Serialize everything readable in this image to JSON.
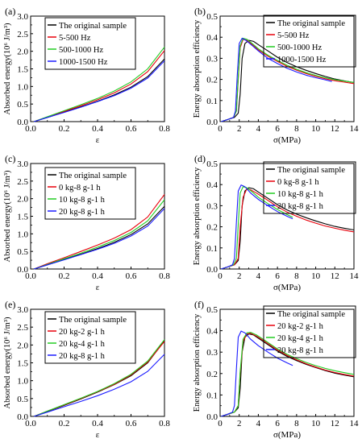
{
  "figure": {
    "panels_note": ""
  },
  "chart_data": [
    {
      "id": "a",
      "panel_label": "(a)",
      "type": "line",
      "xlabel": "ε",
      "ylabel": "Absorbed energy(10⁶ J/m³)",
      "xlim": [
        0,
        0.8
      ],
      "ylim": [
        0,
        3.0
      ],
      "xticks": [
        "0.0",
        "0.2",
        "0.4",
        "0.6",
        "0.8"
      ],
      "yticks": [
        "0.0",
        "0.5",
        "1.0",
        "1.5",
        "2.0",
        "2.5",
        "3.0"
      ],
      "legend_position": "top-left",
      "series": [
        {
          "name": "The original sample",
          "color": "#000000",
          "x": [
            0.02,
            0.1,
            0.2,
            0.3,
            0.4,
            0.5,
            0.6,
            0.7,
            0.8
          ],
          "y": [
            0.0,
            0.12,
            0.27,
            0.42,
            0.58,
            0.76,
            0.98,
            1.28,
            1.78
          ]
        },
        {
          "name": "5-500 Hz",
          "color": "#e8000b",
          "x": [
            0.02,
            0.1,
            0.2,
            0.3,
            0.4,
            0.5,
            0.6,
            0.7,
            0.8
          ],
          "y": [
            0.0,
            0.13,
            0.29,
            0.45,
            0.62,
            0.82,
            1.07,
            1.42,
            2.02
          ]
        },
        {
          "name": "500-1000 Hz",
          "color": "#22cc22",
          "x": [
            0.02,
            0.1,
            0.2,
            0.3,
            0.4,
            0.5,
            0.6,
            0.7,
            0.8
          ],
          "y": [
            0.0,
            0.14,
            0.31,
            0.48,
            0.66,
            0.87,
            1.13,
            1.5,
            2.12
          ]
        },
        {
          "name": "1000-1500 Hz",
          "color": "#1a1aff",
          "x": [
            0.02,
            0.1,
            0.2,
            0.3,
            0.4,
            0.5,
            0.6,
            0.7,
            0.8
          ],
          "y": [
            0.0,
            0.12,
            0.26,
            0.41,
            0.57,
            0.74,
            0.95,
            1.24,
            1.73
          ]
        }
      ]
    },
    {
      "id": "b",
      "panel_label": "(b)",
      "type": "line",
      "xlabel": "σ(MPa)",
      "ylabel": "Energy absorption efficiency",
      "xlim": [
        0,
        14
      ],
      "ylim": [
        0,
        0.5
      ],
      "xticks": [
        "0",
        "2",
        "4",
        "6",
        "8",
        "10",
        "12",
        "14"
      ],
      "yticks": [
        "0.0",
        "0.1",
        "0.2",
        "0.3",
        "0.4",
        "0.5"
      ],
      "legend_position": "top-right",
      "series": [
        {
          "name": "The original sample",
          "color": "#000000",
          "x": [
            0.1,
            0.8,
            1.5,
            1.9,
            2.1,
            2.3,
            2.6,
            3.0,
            3.5,
            4,
            5,
            6,
            7,
            8,
            9,
            10,
            11,
            12,
            13,
            14
          ],
          "y": [
            0.0,
            0.01,
            0.02,
            0.04,
            0.13,
            0.3,
            0.37,
            0.385,
            0.38,
            0.365,
            0.335,
            0.305,
            0.28,
            0.26,
            0.243,
            0.228,
            0.214,
            0.202,
            0.193,
            0.185
          ]
        },
        {
          "name": "5-500 Hz",
          "color": "#e8000b",
          "x": [
            0.1,
            0.8,
            1.4,
            1.7,
            1.9,
            2.1,
            2.4,
            2.8,
            3.5,
            4,
            5,
            6,
            7,
            8,
            9,
            10,
            11,
            12,
            13,
            14
          ],
          "y": [
            0.0,
            0.01,
            0.02,
            0.05,
            0.2,
            0.35,
            0.39,
            0.385,
            0.36,
            0.34,
            0.31,
            0.285,
            0.262,
            0.244,
            0.228,
            0.214,
            0.203,
            0.194,
            0.187,
            0.18
          ]
        },
        {
          "name": "500-1000 Hz",
          "color": "#22cc22",
          "x": [
            0.1,
            0.8,
            1.4,
            1.7,
            1.9,
            2.1,
            2.4,
            2.8,
            3.5,
            4,
            5,
            6,
            7,
            8,
            9,
            10,
            11,
            12,
            13,
            14
          ],
          "y": [
            0.0,
            0.01,
            0.02,
            0.05,
            0.21,
            0.36,
            0.395,
            0.39,
            0.365,
            0.345,
            0.315,
            0.29,
            0.267,
            0.248,
            0.232,
            0.219,
            0.208,
            0.199,
            0.192,
            0.186
          ]
        },
        {
          "name": "1000-1500 Hz",
          "color": "#1a1aff",
          "x": [
            0.1,
            0.8,
            1.4,
            1.6,
            1.8,
            2.0,
            2.3,
            2.7,
            3.5,
            4,
            5,
            6,
            7,
            8,
            9,
            10,
            11,
            11.7
          ],
          "y": [
            0.0,
            0.01,
            0.02,
            0.05,
            0.22,
            0.37,
            0.395,
            0.385,
            0.355,
            0.335,
            0.3,
            0.275,
            0.253,
            0.235,
            0.22,
            0.208,
            0.198,
            0.19
          ]
        }
      ]
    },
    {
      "id": "c",
      "panel_label": "(c)",
      "type": "line",
      "xlabel": "ε",
      "ylabel": "Absorbed energy(10⁶ J/m³)",
      "xlim": [
        0,
        0.8
      ],
      "ylim": [
        0,
        3.0
      ],
      "xticks": [
        "0.0",
        "0.2",
        "0.4",
        "0.6",
        "0.8"
      ],
      "yticks": [
        "0.0",
        "0.5",
        "1.0",
        "1.5",
        "2.0",
        "2.5",
        "3.0"
      ],
      "legend_position": "top-left",
      "series": [
        {
          "name": "The original sample",
          "color": "#000000",
          "x": [
            0.02,
            0.1,
            0.2,
            0.3,
            0.4,
            0.5,
            0.6,
            0.7,
            0.8
          ],
          "y": [
            0.0,
            0.12,
            0.27,
            0.42,
            0.58,
            0.76,
            0.98,
            1.28,
            1.78
          ]
        },
        {
          "name": "0 kg-8 g-1 h",
          "color": "#e8000b",
          "x": [
            0.02,
            0.1,
            0.2,
            0.3,
            0.4,
            0.5,
            0.6,
            0.7,
            0.8
          ],
          "y": [
            0.0,
            0.15,
            0.32,
            0.5,
            0.68,
            0.88,
            1.12,
            1.48,
            2.12
          ]
        },
        {
          "name": "10 kg-8 g-1 h",
          "color": "#22cc22",
          "x": [
            0.02,
            0.1,
            0.2,
            0.3,
            0.4,
            0.5,
            0.6,
            0.7,
            0.8
          ],
          "y": [
            0.0,
            0.13,
            0.29,
            0.45,
            0.62,
            0.81,
            1.04,
            1.37,
            1.97
          ]
        },
        {
          "name": "20 kg-8 g-1 h",
          "color": "#1a1aff",
          "x": [
            0.02,
            0.1,
            0.2,
            0.3,
            0.4,
            0.5,
            0.6,
            0.7,
            0.8
          ],
          "y": [
            0.0,
            0.12,
            0.26,
            0.41,
            0.56,
            0.73,
            0.94,
            1.22,
            1.72
          ]
        }
      ]
    },
    {
      "id": "d",
      "panel_label": "(d)",
      "type": "line",
      "xlabel": "σ(MPa)",
      "ylabel": "Energy absorption efficiency",
      "xlim": [
        0,
        14
      ],
      "ylim": [
        0,
        0.5
      ],
      "xticks": [
        "0",
        "2",
        "4",
        "6",
        "8",
        "10",
        "12",
        "14"
      ],
      "yticks": [
        "0.0",
        "0.1",
        "0.2",
        "0.3",
        "0.4",
        "0.5"
      ],
      "legend_position": "top-right",
      "series": [
        {
          "name": "The original sample",
          "color": "#000000",
          "x": [
            0.1,
            0.8,
            1.5,
            1.9,
            2.1,
            2.3,
            2.6,
            3.0,
            3.5,
            4,
            5,
            6,
            7,
            8,
            9,
            10,
            11,
            12,
            13,
            14
          ],
          "y": [
            0.0,
            0.01,
            0.02,
            0.04,
            0.13,
            0.3,
            0.37,
            0.385,
            0.38,
            0.365,
            0.335,
            0.305,
            0.28,
            0.26,
            0.243,
            0.228,
            0.214,
            0.202,
            0.193,
            0.185
          ]
        },
        {
          "name": "0 kg-8 g-1 h",
          "color": "#e8000b",
          "x": [
            0.1,
            0.8,
            1.5,
            1.9,
            2.1,
            2.4,
            2.8,
            3.2,
            3.8,
            4.5,
            5,
            6,
            7,
            8,
            9,
            10,
            11,
            12,
            13,
            14
          ],
          "y": [
            0.0,
            0.01,
            0.02,
            0.05,
            0.2,
            0.34,
            0.38,
            0.375,
            0.36,
            0.34,
            0.325,
            0.295,
            0.27,
            0.25,
            0.232,
            0.217,
            0.204,
            0.193,
            0.184,
            0.176
          ]
        },
        {
          "name": "10 kg-8 g-1 h",
          "color": "#22cc22",
          "x": [
            0.1,
            0.8,
            1.4,
            1.7,
            1.9,
            2.1,
            2.4,
            2.8,
            3.5,
            4,
            5,
            6,
            7,
            7.6
          ],
          "y": [
            0.0,
            0.01,
            0.02,
            0.05,
            0.21,
            0.36,
            0.39,
            0.385,
            0.36,
            0.34,
            0.31,
            0.282,
            0.258,
            0.245
          ]
        },
        {
          "name": "20 kg-8 g-1 h",
          "color": "#1a1aff",
          "x": [
            0.1,
            0.8,
            1.3,
            1.5,
            1.7,
            1.9,
            2.2,
            2.6,
            3.2,
            4,
            5,
            6,
            7,
            7.6
          ],
          "y": [
            0.0,
            0.01,
            0.02,
            0.05,
            0.22,
            0.37,
            0.398,
            0.39,
            0.36,
            0.33,
            0.3,
            0.272,
            0.25,
            0.238
          ]
        }
      ]
    },
    {
      "id": "e",
      "panel_label": "(e)",
      "type": "line",
      "xlabel": "ε",
      "ylabel": "Absorbed energy(10⁶ J/m³)",
      "xlim": [
        0,
        0.8
      ],
      "ylim": [
        0,
        3.0
      ],
      "xticks": [
        "0.0",
        "0.2",
        "0.4",
        "0.6",
        "0.8"
      ],
      "yticks": [
        "0.0",
        "0.5",
        "1.0",
        "1.5",
        "2.0",
        "2.5",
        "3.0"
      ],
      "legend_position": "top-left",
      "series": [
        {
          "name": "The original sample",
          "color": "#000000",
          "x": [
            0.02,
            0.1,
            0.2,
            0.3,
            0.4,
            0.5,
            0.6,
            0.7,
            0.8
          ],
          "y": [
            0.0,
            0.14,
            0.31,
            0.49,
            0.68,
            0.89,
            1.14,
            1.5,
            2.12
          ]
        },
        {
          "name": "20 kg-2 g-1 h",
          "color": "#e8000b",
          "x": [
            0.02,
            0.1,
            0.2,
            0.3,
            0.4,
            0.5,
            0.6,
            0.7,
            0.8
          ],
          "y": [
            0.0,
            0.15,
            0.32,
            0.5,
            0.69,
            0.9,
            1.16,
            1.52,
            2.1
          ]
        },
        {
          "name": "20 kg-4 g-1 h",
          "color": "#22cc22",
          "x": [
            0.02,
            0.1,
            0.2,
            0.3,
            0.4,
            0.5,
            0.6,
            0.7,
            0.8
          ],
          "y": [
            0.0,
            0.15,
            0.33,
            0.51,
            0.7,
            0.92,
            1.18,
            1.55,
            2.15
          ]
        },
        {
          "name": "20 kg-8 g-1 h",
          "color": "#1a1aff",
          "x": [
            0.02,
            0.1,
            0.2,
            0.3,
            0.4,
            0.5,
            0.6,
            0.7,
            0.8
          ],
          "y": [
            0.0,
            0.12,
            0.27,
            0.42,
            0.58,
            0.76,
            0.97,
            1.26,
            1.74
          ]
        }
      ]
    },
    {
      "id": "f",
      "panel_label": "(f)",
      "type": "line",
      "xlabel": "σ(MPa)",
      "ylabel": "Energy absorption efficiency",
      "xlim": [
        0,
        14
      ],
      "ylim": [
        0,
        0.5
      ],
      "xticks": [
        "0",
        "2",
        "4",
        "6",
        "8",
        "10",
        "12",
        "14"
      ],
      "yticks": [
        "0.0",
        "0.1",
        "0.2",
        "0.3",
        "0.4",
        "0.5"
      ],
      "legend_position": "top-right",
      "series": [
        {
          "name": "The original sample",
          "color": "#000000",
          "x": [
            0.1,
            0.8,
            1.5,
            1.9,
            2.1,
            2.3,
            2.6,
            3.0,
            3.5,
            4,
            5,
            6,
            7,
            8,
            9,
            10,
            11,
            12,
            13,
            14
          ],
          "y": [
            0.0,
            0.01,
            0.02,
            0.04,
            0.13,
            0.3,
            0.37,
            0.385,
            0.38,
            0.365,
            0.335,
            0.305,
            0.28,
            0.26,
            0.243,
            0.228,
            0.214,
            0.202,
            0.193,
            0.185
          ]
        },
        {
          "name": "20 kg-2 g-1 h",
          "color": "#e8000b",
          "x": [
            0.1,
            0.8,
            1.5,
            1.9,
            2.1,
            2.4,
            2.8,
            3.2,
            3.8,
            4.5,
            5,
            6,
            7,
            8,
            9,
            10,
            11,
            12,
            13,
            14
          ],
          "y": [
            0.0,
            0.01,
            0.02,
            0.05,
            0.2,
            0.35,
            0.385,
            0.388,
            0.375,
            0.355,
            0.34,
            0.31,
            0.285,
            0.264,
            0.246,
            0.23,
            0.216,
            0.205,
            0.196,
            0.188
          ]
        },
        {
          "name": "20 kg-4 g-1 h",
          "color": "#22cc22",
          "x": [
            0.1,
            0.8,
            1.5,
            1.9,
            2.1,
            2.4,
            2.8,
            3.2,
            3.8,
            4.5,
            5,
            6,
            7,
            8,
            9,
            10,
            11,
            12,
            13,
            14
          ],
          "y": [
            0.0,
            0.01,
            0.02,
            0.05,
            0.21,
            0.36,
            0.39,
            0.392,
            0.38,
            0.36,
            0.345,
            0.315,
            0.29,
            0.27,
            0.252,
            0.237,
            0.224,
            0.213,
            0.204,
            0.196
          ]
        },
        {
          "name": "20 kg-8 g-1 h",
          "color": "#1a1aff",
          "x": [
            0.1,
            0.8,
            1.3,
            1.5,
            1.7,
            1.9,
            2.2,
            2.6,
            3.2,
            4,
            5,
            6,
            7,
            7.6
          ],
          "y": [
            0.0,
            0.01,
            0.02,
            0.05,
            0.22,
            0.37,
            0.398,
            0.39,
            0.36,
            0.33,
            0.3,
            0.272,
            0.25,
            0.238
          ]
        }
      ]
    }
  ]
}
